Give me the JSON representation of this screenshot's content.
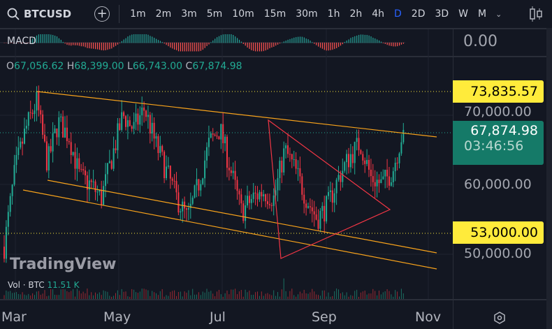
{
  "toolbar": {
    "symbol": "BTCUSD",
    "add_label": "+",
    "timeframes": [
      "1m",
      "2m",
      "3m",
      "5m",
      "10m",
      "15m",
      "30m",
      "1h",
      "2h",
      "4h",
      "D",
      "2D",
      "3D",
      "W",
      "M"
    ],
    "active": "D",
    "more": "⌄"
  },
  "macd": {
    "label": "MACD",
    "value": "0.00"
  },
  "ohlc": {
    "o_label": "O",
    "o": "67,056.62",
    "h_label": "H",
    "h": "68,399.00",
    "l_label": "L",
    "l": "66,743.00",
    "c_label": "C",
    "c": "67,874.98"
  },
  "price_axis": {
    "labels": [
      "70,000.00",
      "60,000.00",
      "50,000.00"
    ],
    "alert_high": "73,835.57",
    "alert_low": "53,000.00",
    "last_price": "67,874.98",
    "countdown": "03:46:56"
  },
  "volume": {
    "label": "Vol · BTC",
    "value": "11.51 K"
  },
  "watermark": "TradingView",
  "time_axis": [
    "Mar",
    "May",
    "Jul",
    "Sep",
    "Nov"
  ],
  "colors": {
    "up": "#22ab94",
    "down": "#f23645",
    "alert": "#ffeb3b",
    "last": "#157a68",
    "channel": "#f7a21b",
    "triangle": "#f23645"
  },
  "chart_data": {
    "type": "candlestick",
    "anchors": [
      51000,
      62000,
      68000,
      72000,
      63000,
      69000,
      67000,
      61000,
      60000,
      58000,
      64000,
      70000,
      68000,
      71000,
      66000,
      62000,
      58000,
      55000,
      60000,
      66000,
      68000,
      62000,
      56000,
      58000,
      59000,
      58000,
      65000,
      62000,
      58000,
      55000,
      57000,
      61000,
      64000,
      66000,
      61000,
      60000,
      62000,
      68000
    ],
    "ylim": [
      45000,
      78000
    ]
  }
}
